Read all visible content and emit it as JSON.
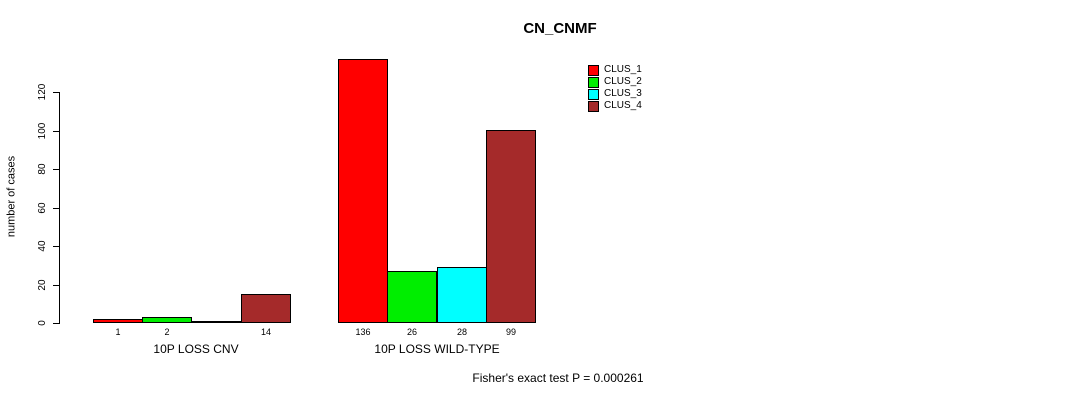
{
  "chart_data": {
    "type": "bar",
    "title": "CN_CNMF",
    "ylabel": "number of cases",
    "xlabel": "",
    "yticks": [
      0,
      20,
      40,
      60,
      80,
      100,
      120
    ],
    "ylim": [
      0,
      140
    ],
    "grid": false,
    "legend_position": "top-right",
    "bar_border_color": "#000000",
    "series": [
      {
        "name": "CLUS_1",
        "color": "#FF0000"
      },
      {
        "name": "CLUS_2",
        "color": "#00EE00"
      },
      {
        "name": "CLUS_3",
        "color": "#00FFFF"
      },
      {
        "name": "CLUS_4",
        "color": "#A52A2A"
      }
    ],
    "groups": [
      {
        "label": "10P LOSS CNV",
        "values": [
          1,
          2,
          0,
          14
        ],
        "value_labels": [
          "1",
          "2",
          "",
          "14"
        ]
      },
      {
        "label": "10P LOSS WILD-TYPE",
        "values": [
          136,
          26,
          28,
          99
        ],
        "value_labels": [
          "136",
          "26",
          "28",
          "99"
        ]
      }
    ],
    "annotation": "Fisher's exact test P = 0.000261"
  }
}
